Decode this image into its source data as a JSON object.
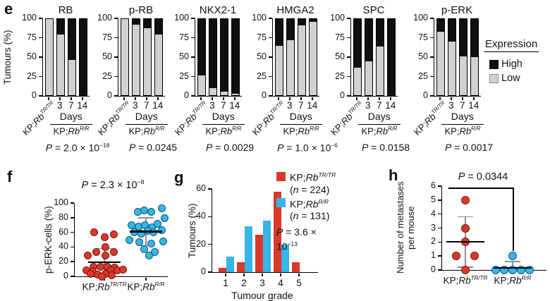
{
  "figure_background": "#ffffff",
  "colors": {
    "red_fill": "#d8392b",
    "red_edge": "#7a150c",
    "blue_fill": "#36b5e9",
    "blue_edge": "#0d5574",
    "low_gray": "#d1d1d1",
    "low_border": "#8c8c8c",
    "high_black": "#0f0f0f",
    "error_gray": "#8f8f8f",
    "axis_black": "#000000"
  },
  "ui": {
    "panel_labels": {
      "e": "e",
      "f": "f",
      "g": "g",
      "h": "h"
    },
    "genotypes": {
      "tr": {
        "pre": "KP;",
        "gene": "Rb",
        "sup": "TR/TR"
      },
      "r": {
        "pre": "KP;",
        "gene": "Rb",
        "sup": "R/R"
      }
    },
    "panel_e": {
      "day_ticks": [
        "3",
        "7",
        "14"
      ],
      "days_label": "Days",
      "legend": {
        "title": "Expression",
        "high": "High",
        "low": "Low"
      }
    }
  },
  "chart_data": [
    {
      "panel": "e",
      "type": "stacked-bar",
      "title": "RB",
      "categories": [
        "KP;RbTR/TR",
        "KP;RbR/R day 3",
        "KP;RbR/R day 7",
        "KP;RbR/R day 14"
      ],
      "series": [
        {
          "name": "Low",
          "values": [
            100,
            80,
            46,
            0
          ]
        },
        {
          "name": "High",
          "values": [
            0,
            20,
            54,
            100
          ]
        }
      ],
      "ylabel": "Tumours (%)",
      "ylim": [
        0,
        100
      ],
      "yticks": [
        0,
        25,
        50,
        75,
        100
      ],
      "p_base": "2.0 × 10",
      "p_exp": "−18"
    },
    {
      "panel": "e",
      "type": "stacked-bar",
      "title": "p-RB",
      "categories": [
        "KP;RbTR/TR",
        "KP;RbR/R day 3",
        "KP;RbR/R day 7",
        "KP;RbR/R day 14"
      ],
      "series": [
        {
          "name": "Low",
          "values": [
            100,
            93,
            88,
            80
          ]
        },
        {
          "name": "High",
          "values": [
            0,
            7,
            12,
            20
          ]
        }
      ],
      "ylabel": "Tumours (%)",
      "ylim": [
        0,
        100
      ],
      "yticks": [
        0,
        25,
        50,
        75,
        100
      ],
      "p_base": "0.0245",
      "p_exp": ""
    },
    {
      "panel": "e",
      "type": "stacked-bar",
      "title": "NKX2-1",
      "categories": [
        "KP;RbTR/TR",
        "KP;RbR/R day 3",
        "KP;RbR/R day 7",
        "KP;RbR/R day 14"
      ],
      "series": [
        {
          "name": "Low",
          "values": [
            26,
            9,
            5,
            2
          ]
        },
        {
          "name": "High",
          "values": [
            74,
            91,
            95,
            98
          ]
        }
      ],
      "ylabel": "Tumours (%)",
      "ylim": [
        0,
        100
      ],
      "yticks": [
        0,
        25,
        50,
        75,
        100
      ],
      "p_base": "0.0029",
      "p_exp": ""
    },
    {
      "panel": "e",
      "type": "stacked-bar",
      "title": "HMGA2",
      "categories": [
        "KP;RbTR/TR",
        "KP;RbR/R day 3",
        "KP;RbR/R day 7",
        "KP;RbR/R day 14"
      ],
      "series": [
        {
          "name": "Low",
          "values": [
            65,
            72,
            92,
            96
          ]
        },
        {
          "name": "High",
          "values": [
            35,
            28,
            8,
            4
          ]
        }
      ],
      "ylabel": "Tumours (%)",
      "ylim": [
        0,
        100
      ],
      "yticks": [
        0,
        25,
        50,
        75,
        100
      ],
      "p_base": "1.0 × 10",
      "p_exp": "−6"
    },
    {
      "panel": "e",
      "type": "stacked-bar",
      "title": "SPC",
      "categories": [
        "KP;RbTR/TR",
        "KP;RbR/R day 3",
        "KP;RbR/R day 7",
        "KP;RbR/R day 14"
      ],
      "series": [
        {
          "name": "Low",
          "values": [
            36,
            44,
            64,
            0
          ]
        },
        {
          "name": "High",
          "values": [
            64,
            56,
            36,
            100
          ]
        }
      ],
      "ylabel": "Tumours (%)",
      "ylim": [
        0,
        100
      ],
      "yticks": [
        0,
        25,
        50,
        75,
        100
      ],
      "p_base": "0.0158",
      "p_exp": ""
    },
    {
      "panel": "e",
      "type": "stacked-bar",
      "title": "p-ERK",
      "categories": [
        "KP;RbTR/TR",
        "KP;RbR/R day 3",
        "KP;RbR/R day 7",
        "KP;RbR/R day 14"
      ],
      "series": [
        {
          "name": "Low",
          "values": [
            83,
            70,
            51,
            50
          ]
        },
        {
          "name": "High",
          "values": [
            17,
            30,
            49,
            50
          ]
        }
      ],
      "ylabel": "Tumours (%)",
      "ylim": [
        0,
        100
      ],
      "yticks": [
        0,
        25,
        50,
        75,
        100
      ],
      "p_base": "0.0017",
      "p_exp": ""
    },
    {
      "panel": "f",
      "type": "scatter",
      "ylabel_parts": {
        "pre": "p-ERK",
        "sup": "+",
        "post": " cells (%)"
      },
      "ylim": [
        0,
        100
      ],
      "yticks": [
        0,
        20,
        40,
        60,
        80,
        100
      ],
      "p_base": "2.3 × 10",
      "p_exp": "−8",
      "groups": [
        {
          "name": "KP;RbTR/TR",
          "color": "red",
          "mean": 19,
          "err_lo": 1,
          "err_hi": 38,
          "points": [
            [
              -0.55,
              60
            ],
            [
              0.02,
              53
            ],
            [
              0.5,
              57
            ],
            [
              0.05,
              40
            ],
            [
              -0.45,
              33
            ],
            [
              0.5,
              33
            ],
            [
              -0.9,
              28
            ],
            [
              0.05,
              28
            ],
            [
              -0.6,
              13
            ],
            [
              -0.22,
              13
            ],
            [
              0.18,
              13
            ],
            [
              0.55,
              12
            ],
            [
              -1,
              8
            ],
            [
              -0.62,
              7
            ],
            [
              0.35,
              8
            ],
            [
              0.72,
              8
            ],
            [
              1,
              9
            ],
            [
              -0.75,
              3
            ],
            [
              -0.35,
              2
            ],
            [
              0.05,
              3
            ],
            [
              0.4,
              1
            ],
            [
              -0.12,
              0
            ]
          ]
        },
        {
          "name": "KP;RbR/R",
          "color": "blue",
          "mean": 61,
          "err_lo": 42,
          "err_hi": 80,
          "points": [
            [
              -0.45,
              88
            ],
            [
              -0.08,
              90
            ],
            [
              0.28,
              88
            ],
            [
              0.85,
              93
            ],
            [
              1,
              79
            ],
            [
              -0.8,
              70
            ],
            [
              -0.42,
              68
            ],
            [
              -0.05,
              70
            ],
            [
              0.32,
              67
            ],
            [
              0.62,
              72
            ],
            [
              -0.62,
              60
            ],
            [
              -0.25,
              58
            ],
            [
              0.08,
              62
            ],
            [
              0.42,
              60
            ],
            [
              0.85,
              63
            ],
            [
              -0.9,
              50
            ],
            [
              -0.35,
              47
            ],
            [
              0.28,
              45
            ],
            [
              0.95,
              48
            ],
            [
              -0.1,
              37
            ],
            [
              0.48,
              33
            ],
            [
              0.18,
              28
            ]
          ]
        }
      ]
    },
    {
      "panel": "g",
      "type": "bar",
      "categories": [
        "1",
        "2",
        "3",
        "4",
        "5"
      ],
      "xlabel": "Tumour grade",
      "ylabel": "Tumours (%)",
      "ylim": [
        0,
        60
      ],
      "yticks": [
        0,
        20,
        40,
        60
      ],
      "series": [
        {
          "name": "KP;RbTR/TR",
          "n_label": "(n = 224)",
          "color": "red",
          "values": [
            3,
            7,
            27,
            58,
            7
          ]
        },
        {
          "name": "KP;RbR/R",
          "n_label": "(n = 131)",
          "color": "blue",
          "values": [
            11,
            33,
            37,
            20,
            0
          ]
        }
      ],
      "p_base": "3.6 × 10",
      "p_exp": "−13"
    },
    {
      "panel": "h",
      "type": "scatter",
      "ylabel_lines": [
        "Number of metastases",
        "per mouse"
      ],
      "ylim": [
        0,
        6
      ],
      "yticks": [
        0,
        1,
        2,
        3,
        4,
        5,
        6
      ],
      "p_base": "0.0344",
      "p_exp": "",
      "groups": [
        {
          "name": "KP;RbTR/TR",
          "color": "red",
          "mean": 2,
          "err_lo": 0.2,
          "err_hi": 3.8,
          "points": [
            [
              0,
              5
            ],
            [
              0,
              3
            ],
            [
              0,
              2
            ],
            [
              -0.55,
              1
            ],
            [
              0.55,
              1
            ],
            [
              0,
              0
            ]
          ]
        },
        {
          "name": "KP;RbR/R",
          "color": "blue",
          "mean": 0.15,
          "err_lo": 0,
          "err_hi": 0.6,
          "points": [
            [
              0,
              1
            ],
            [
              -1,
              0
            ],
            [
              -0.5,
              0
            ],
            [
              0,
              0
            ],
            [
              0.5,
              0
            ],
            [
              1,
              0
            ]
          ]
        }
      ]
    }
  ]
}
